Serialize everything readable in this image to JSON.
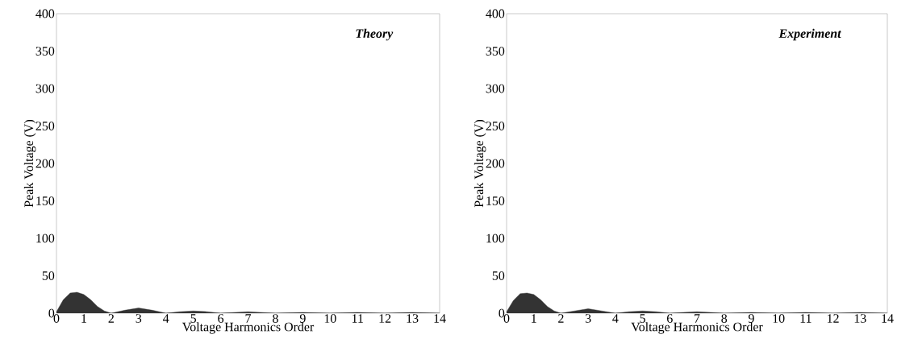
{
  "chart_data": [
    {
      "type": "area",
      "xlabel": "Voltage Harmonics Order",
      "ylabel": "Peak Voltage (V)",
      "annotations": [
        "Theory"
      ],
      "xlim": [
        0,
        14
      ],
      "xticks": [
        0,
        1,
        2,
        3,
        4,
        5,
        6,
        7,
        8,
        9,
        10,
        11,
        12,
        13,
        14
      ],
      "ylim": [
        0,
        400
      ],
      "yticks": [
        0,
        50,
        100,
        150,
        200,
        250,
        300,
        350,
        400
      ],
      "x": [
        0,
        0.25,
        0.5,
        0.75,
        1,
        1.25,
        1.5,
        1.75,
        2,
        2.5,
        3,
        3.5,
        4,
        4.5,
        5,
        5.5,
        6,
        6.5,
        7,
        7.5,
        8,
        9,
        10,
        11,
        12,
        13,
        14
      ],
      "series": [
        {
          "color": "#333333",
          "values": [
            2,
            18,
            27,
            28,
            25,
            18,
            9,
            3,
            0,
            4,
            7,
            4,
            0,
            2,
            3,
            2,
            0,
            1,
            2,
            1,
            0,
            1,
            0,
            1,
            0,
            1,
            0
          ]
        }
      ]
    },
    {
      "type": "area",
      "xlabel": "Voltage Harmonics Order",
      "ylabel": "Peak Voltage (V)",
      "annotations": [
        "Experiment"
      ],
      "xlim": [
        0,
        14
      ],
      "xticks": [
        0,
        1,
        2,
        3,
        4,
        5,
        6,
        7,
        8,
        9,
        10,
        11,
        12,
        13,
        14
      ],
      "ylim": [
        0,
        400
      ],
      "yticks": [
        0,
        50,
        100,
        150,
        200,
        250,
        300,
        350,
        400
      ],
      "x": [
        0,
        0.25,
        0.5,
        0.75,
        1,
        1.25,
        1.5,
        1.75,
        2,
        2.5,
        3,
        3.5,
        4,
        4.5,
        5,
        5.5,
        6,
        6.5,
        7,
        7.5,
        8,
        9,
        10,
        11,
        12,
        13,
        14
      ],
      "series": [
        {
          "color": "#333333",
          "values": [
            2,
            17,
            26,
            27,
            25,
            18,
            9,
            3,
            0,
            3,
            6,
            3,
            0,
            2,
            3,
            2,
            0,
            1,
            2,
            1,
            0,
            1,
            0,
            1,
            0,
            1,
            0
          ]
        }
      ]
    }
  ]
}
